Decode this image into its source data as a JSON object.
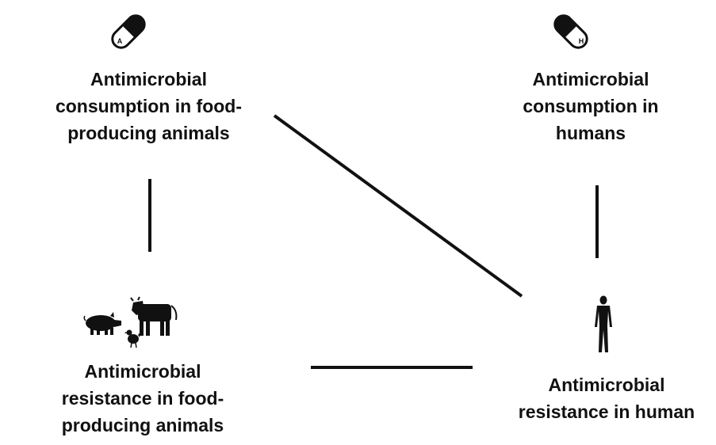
{
  "nodes": {
    "amc_animals": {
      "lines": [
        "Antimicrobial",
        "consumption in food-",
        "producing animals"
      ],
      "icon": "capsule-icon",
      "icon_letter": "A"
    },
    "amc_humans": {
      "lines": [
        "Antimicrobial",
        "consumption in",
        "humans"
      ],
      "icon": "capsule-icon",
      "icon_letter": "H"
    },
    "amr_animals": {
      "lines": [
        "Antimicrobial",
        "resistance in food-",
        "producing animals"
      ],
      "icon": "livestock-icon"
    },
    "amr_human": {
      "lines": [
        "Antimicrobial",
        "resistance in human"
      ],
      "icon": "human-figure-icon"
    }
  },
  "edges": [
    {
      "from": "amc_animals",
      "to": "amr_animals"
    },
    {
      "from": "amc_humans",
      "to": "amr_human"
    },
    {
      "from": "amc_animals",
      "to": "amr_human"
    },
    {
      "from": "amr_animals",
      "to": "amr_human"
    }
  ],
  "colors": {
    "ink": "#111111",
    "background": "#ffffff"
  }
}
